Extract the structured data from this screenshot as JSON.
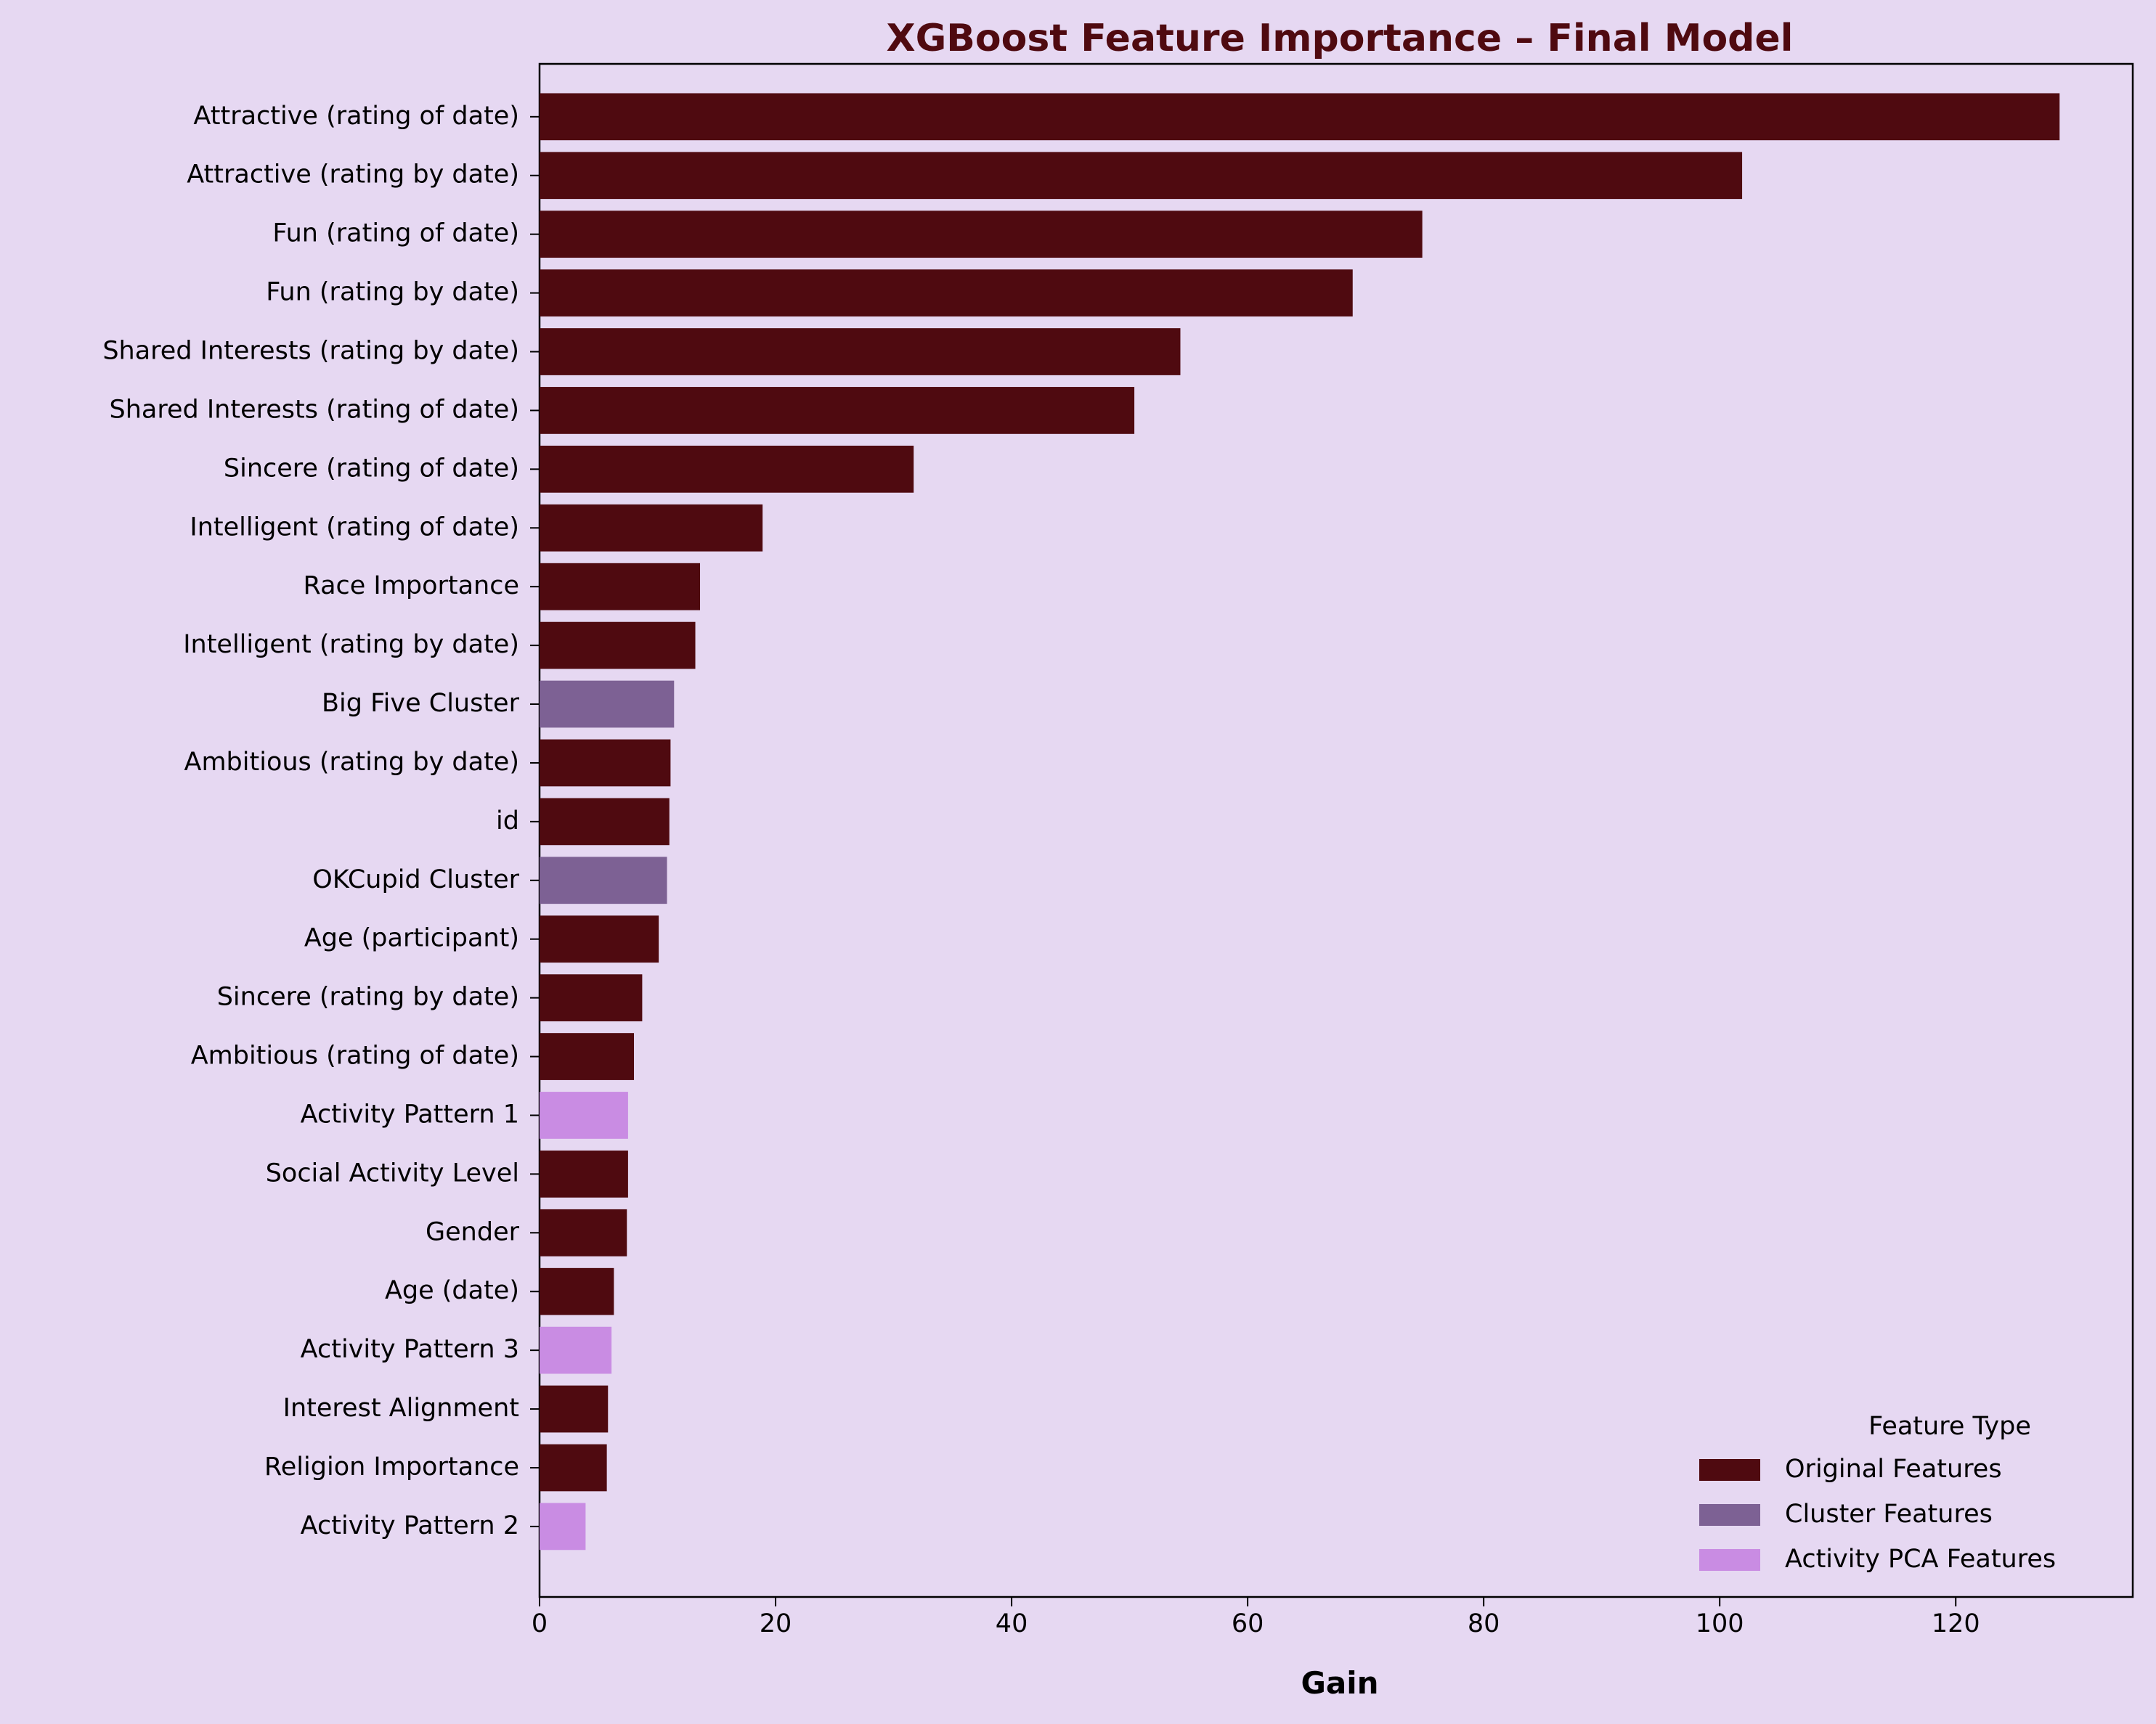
{
  "chart_data": {
    "type": "bar",
    "orientation": "horizontal",
    "title": "XGBoost Feature Importance – Final Model",
    "xlabel": "Gain",
    "ylabel": "",
    "xlim": [
      0,
      135
    ],
    "xticks": [
      0,
      20,
      40,
      60,
      80,
      100,
      120
    ],
    "grid": false,
    "legend": {
      "title": "Feature Type",
      "placement": "bottom-right",
      "entries": [
        {
          "label": "Original Features",
          "color": "#4f0a10"
        },
        {
          "label": "Cluster Features",
          "color": "#7d6194"
        },
        {
          "label": "Activity PCA Features",
          "color": "#c98ce3"
        }
      ]
    },
    "categories": [
      "Attractive (rating of date)",
      "Attractive (rating by date)",
      "Fun (rating of date)",
      "Fun (rating by date)",
      "Shared Interests (rating by date)",
      "Shared Interests (rating of date)",
      "Sincere (rating of date)",
      "Intelligent (rating of date)",
      "Race Importance",
      "Intelligent (rating by date)",
      "Big Five Cluster",
      "Ambitious (rating by date)",
      "id",
      "OKCupid Cluster",
      "Age (participant)",
      "Sincere (rating by date)",
      "Ambitious (rating of date)",
      "Activity Pattern 1",
      "Social Activity Level",
      "Gender",
      "Age (date)",
      "Activity Pattern 3",
      "Interest Alignment",
      "Religion Importance",
      "Activity Pattern 2"
    ],
    "values": [
      128.8,
      101.9,
      74.8,
      68.9,
      54.3,
      50.4,
      31.7,
      18.9,
      13.6,
      13.2,
      11.4,
      11.1,
      11.0,
      10.8,
      10.1,
      8.7,
      8.0,
      7.5,
      7.5,
      7.4,
      6.3,
      6.1,
      5.8,
      5.7,
      3.9
    ],
    "feature_types": [
      "Original Features",
      "Original Features",
      "Original Features",
      "Original Features",
      "Original Features",
      "Original Features",
      "Original Features",
      "Original Features",
      "Original Features",
      "Original Features",
      "Cluster Features",
      "Original Features",
      "Original Features",
      "Cluster Features",
      "Original Features",
      "Original Features",
      "Original Features",
      "Activity PCA Features",
      "Original Features",
      "Original Features",
      "Original Features",
      "Activity PCA Features",
      "Original Features",
      "Original Features",
      "Activity PCA Features"
    ],
    "colors": {
      "background": "#e6d8f2",
      "title": "#4f0a10",
      "axis": "#000000"
    }
  }
}
